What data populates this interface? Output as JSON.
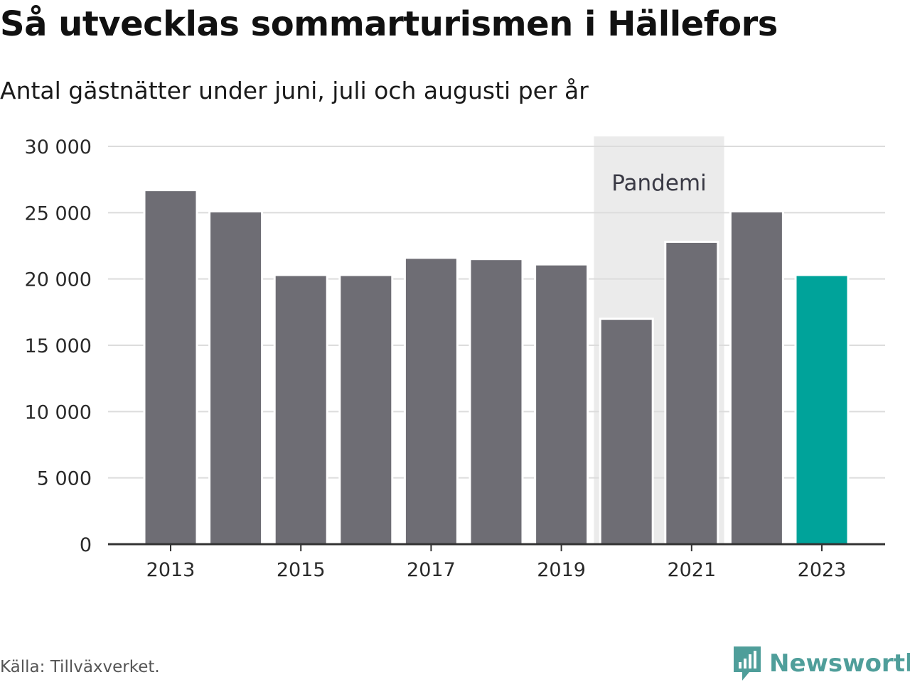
{
  "title": "Så utvecklas sommarturismen i Hällefors",
  "subtitle": "Antal gästnätter under juni, juli och augusti per år",
  "source": "Källa: Tillväxverket.",
  "brand": {
    "name": "Newsworthy",
    "icon": "newsworthy-bar-chart-icon"
  },
  "colors": {
    "bar": "#6e6d74",
    "highlight": "#00a39a",
    "band": "#ebebeb",
    "grid": "#dcdcdc",
    "axis": "#333333"
  },
  "chart_data": {
    "type": "bar",
    "categories": [
      "2013",
      "2014",
      "2015",
      "2016",
      "2017",
      "2018",
      "2019",
      "2020",
      "2021",
      "2022",
      "2023"
    ],
    "values": [
      26700,
      25100,
      20300,
      20300,
      21600,
      21500,
      21100,
      17000,
      22800,
      25100,
      20300
    ],
    "highlight_category": "2023",
    "xticks": [
      "2013",
      "2015",
      "2017",
      "2019",
      "2021",
      "2023"
    ],
    "yticks": [
      0,
      5000,
      10000,
      15000,
      20000,
      25000,
      30000
    ],
    "ytick_labels": [
      "0",
      "5 000",
      "10 000",
      "15 000",
      "20 000",
      "25 000",
      "30 000"
    ],
    "ylim": [
      0,
      30000
    ],
    "grid": true,
    "annotation": {
      "label": "Pandemi",
      "from": "2020",
      "to": "2021"
    }
  }
}
